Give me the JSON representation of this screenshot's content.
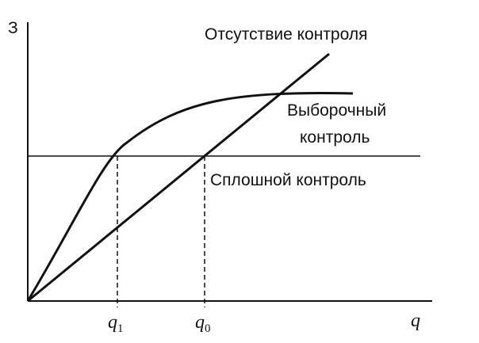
{
  "axes": {
    "y_label": "З",
    "x_label": "q"
  },
  "curves": [
    {
      "label": "Отсутствие контроля"
    },
    {
      "label_line1": "Выборочный",
      "label_line2": "контроль"
    },
    {
      "label": "Сплошной контроль"
    }
  ],
  "points": [
    {
      "text": "q",
      "sub": "1"
    },
    {
      "text": "q",
      "sub": "0"
    }
  ]
}
